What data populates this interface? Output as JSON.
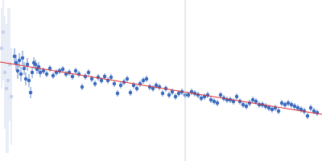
{
  "chart_data": {
    "type": "scatter",
    "xlim": [
      0,
      400
    ],
    "ylim": [
      0,
      200
    ],
    "tick_labels": false,
    "grid": false,
    "vlines": [
      230
    ],
    "series": [
      {
        "type": "scatter",
        "color": "#c5d2ec",
        "marker": "circle",
        "x": [
          2,
          4,
          6,
          8,
          10,
          12,
          14
        ],
        "values": [
          140,
          160,
          110,
          90,
          100,
          120,
          80
        ],
        "errors": [
          50,
          60,
          70,
          80,
          90,
          70,
          60
        ]
      },
      {
        "type": "scatter",
        "color": "#3a6bbf",
        "marker": "circle",
        "x": [
          18,
          20,
          22,
          24,
          26,
          28,
          30,
          32,
          34,
          36,
          38,
          40,
          42,
          44,
          46,
          48,
          50,
          54,
          58,
          62,
          66,
          70,
          74,
          78,
          82,
          86,
          90,
          94,
          98,
          102,
          106,
          110,
          114,
          118,
          122,
          126,
          130,
          134,
          138,
          142,
          146,
          150,
          154,
          158,
          162,
          166,
          170,
          174,
          178,
          182,
          186,
          190,
          194,
          198,
          202,
          206,
          210,
          214,
          218,
          222,
          226,
          230,
          234,
          238,
          242,
          246,
          250,
          254,
          258,
          262,
          266,
          270,
          274,
          278,
          282,
          286,
          290,
          294,
          298,
          302,
          306,
          310,
          314,
          318,
          322,
          326,
          330,
          334,
          338,
          342,
          346,
          350,
          354,
          358,
          362,
          366,
          370,
          374,
          378,
          382,
          386,
          390,
          394
        ],
        "values": [
          130,
          122,
          112,
          125,
          108,
          128,
          115,
          102,
          120,
          100,
          85,
          110,
          122,
          120,
          114,
          117,
          110,
          112,
          108,
          115,
          106,
          110,
          112,
          114,
          108,
          110,
          105,
          112,
          108,
          92,
          105,
          110,
          102,
          96,
          104,
          100,
          105,
          100,
          104,
          96,
          84,
          94,
          98,
          102,
          85,
          94,
          90,
          96,
          100,
          102,
          92,
          90,
          94,
          92,
          84,
          90,
          82,
          86,
          80,
          84,
          86,
          82,
          82,
          86,
          84,
          82,
          78,
          80,
          82,
          76,
          74,
          72,
          82,
          78,
          76,
          76,
          74,
          80,
          74,
          70,
          68,
          72,
          76,
          74,
          70,
          70,
          68,
          66,
          64,
          66,
          62,
          72,
          70,
          72,
          70,
          68,
          66,
          64,
          62,
          56,
          66,
          62,
          60
        ],
        "errors": [
          10,
          10,
          10,
          9,
          9,
          9,
          8,
          8,
          8,
          8,
          7,
          7,
          7,
          6,
          6,
          6,
          6,
          4,
          4,
          4,
          4,
          4,
          4,
          4,
          4,
          4,
          4,
          4,
          4,
          4,
          4,
          4,
          4,
          4,
          4,
          4,
          4,
          4,
          4,
          4,
          4,
          4,
          4,
          4,
          4,
          4,
          4,
          4,
          4,
          4,
          4,
          4,
          4,
          4,
          4,
          4,
          4,
          4,
          4,
          4,
          4,
          4,
          4,
          4,
          4,
          4,
          4,
          4,
          4,
          4,
          4,
          4,
          4,
          4,
          4,
          4,
          4,
          4,
          4,
          4,
          4,
          4,
          4,
          4,
          4,
          4,
          4,
          4,
          4,
          4,
          4,
          4,
          4,
          4,
          4,
          4,
          4,
          4,
          4,
          4,
          4,
          4,
          4
        ]
      },
      {
        "type": "line",
        "color": "#e03030",
        "line_style": "solid",
        "x": [
          0,
          400
        ],
        "values": [
          123,
          58
        ]
      }
    ]
  }
}
